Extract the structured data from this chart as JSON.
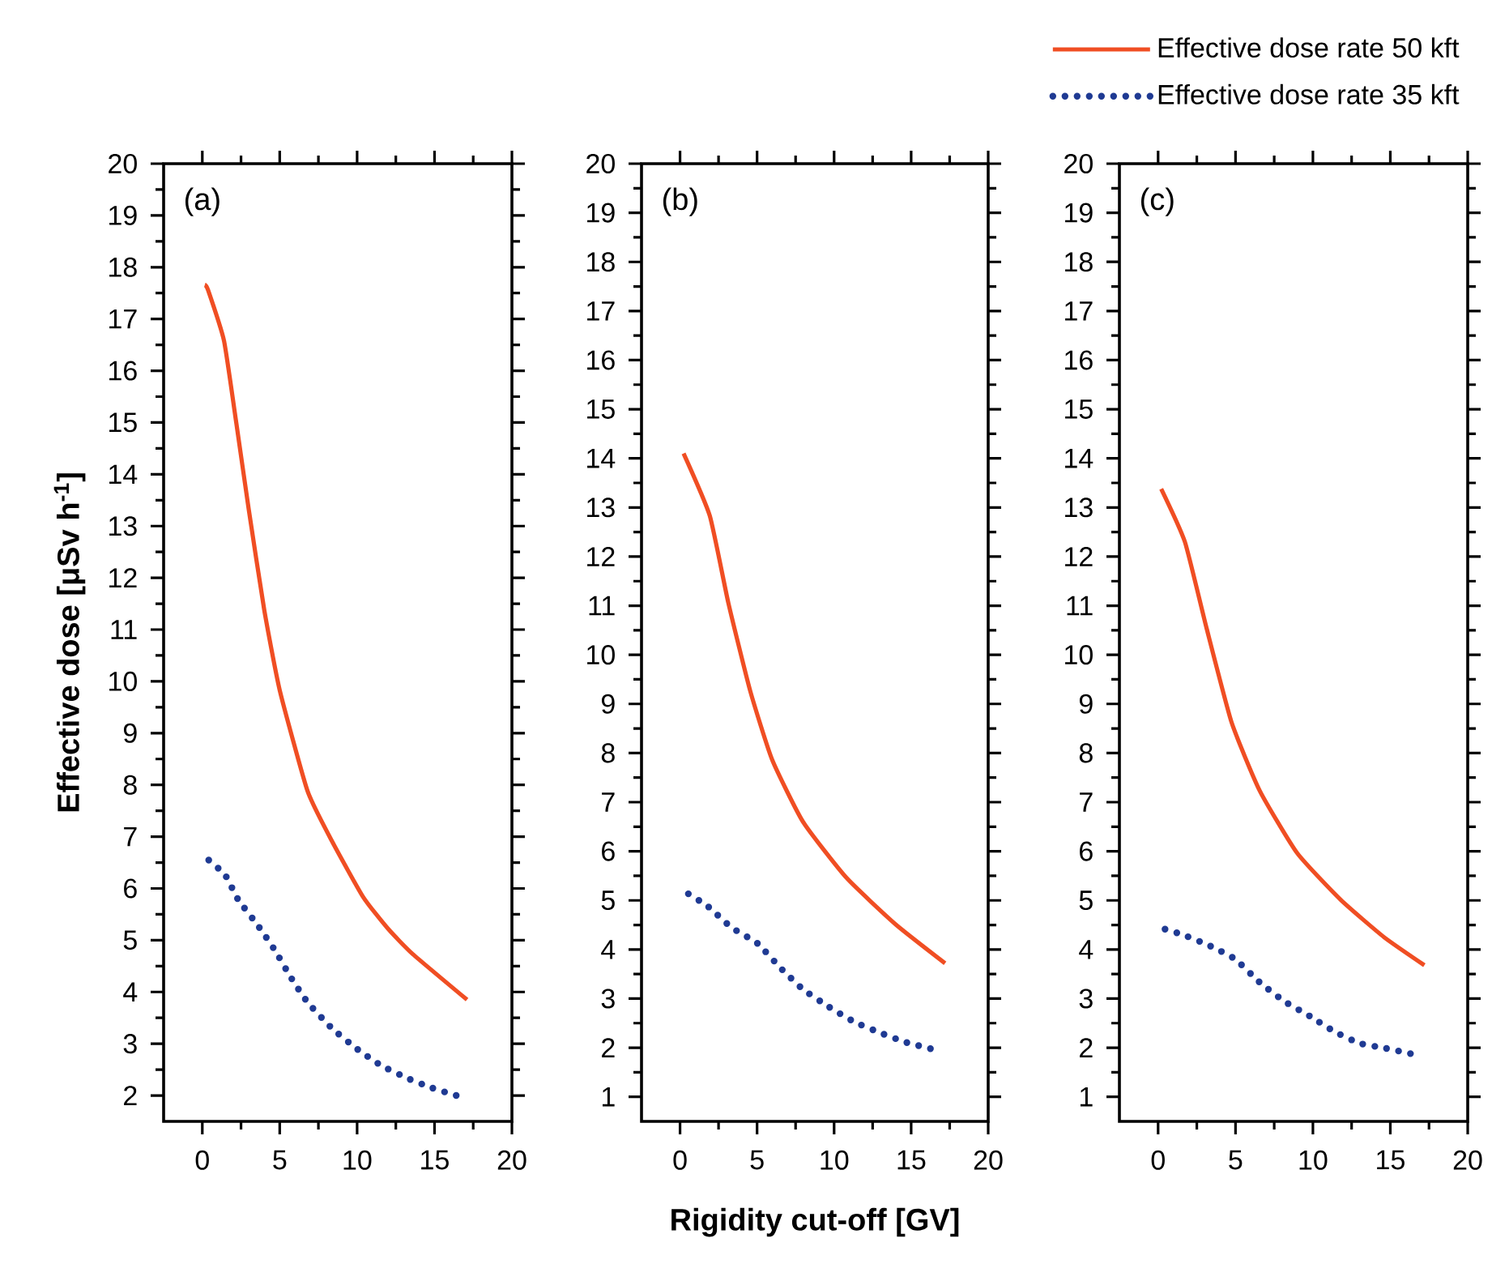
{
  "chart_data": [
    {
      "type": "line",
      "ylabel": "Effective dose  [μSv h$^{-1}$]",
      "annotations": [
        "(a)"
      ],
      "xlim": [
        -2.5,
        20
      ],
      "xticks": [
        0,
        5,
        10,
        15,
        20
      ],
      "ylim": [
        1.5,
        20
      ],
      "yticks": [
        2,
        3,
        4,
        5,
        6,
        7,
        8,
        9,
        10,
        11,
        12,
        13,
        14,
        15,
        16,
        17,
        18,
        19,
        20
      ],
      "marker": "none",
      "series": [
        {
          "color": "#f04e23",
          "line_style": "solid",
          "x": [
            0.16,
            0.37,
            1.4,
            2.2,
            3.0,
            4.0,
            5.0,
            6.8,
            8.4,
            10.4,
            12.0,
            13.6,
            17.1
          ],
          "values": [
            17.66,
            17.56,
            16.58,
            14.98,
            13.32,
            11.38,
            9.83,
            7.88,
            6.9,
            5.83,
            5.22,
            4.73,
            3.85
          ]
        },
        {
          "color": "#1f3a93",
          "line_style": "dotted",
          "x": [
            0.08,
            1.45,
            2.3,
            3.6,
            4.7,
            5.7,
            6.8,
            8.3,
            9.9,
            11.5,
            13.2,
            14.8,
            16.4
          ],
          "values": [
            6.63,
            6.27,
            5.79,
            5.28,
            4.8,
            4.29,
            3.8,
            3.32,
            2.92,
            2.59,
            2.34,
            2.15,
            2.0
          ]
        }
      ]
    },
    {
      "type": "line",
      "xlabel": "Rigidity cut-off  [GV]",
      "annotations": [
        "(b)"
      ],
      "xlim": [
        -2.5,
        20
      ],
      "xticks": [
        0,
        5,
        10,
        15,
        20
      ],
      "ylim": [
        0.5,
        20
      ],
      "yticks": [
        1,
        2,
        3,
        4,
        5,
        6,
        7,
        8,
        9,
        10,
        11,
        12,
        13,
        14,
        15,
        16,
        17,
        18,
        19,
        20
      ],
      "marker": "none",
      "series": [
        {
          "color": "#f04e23",
          "line_style": "solid",
          "x": [
            0.23,
            1.93,
            3.14,
            4.55,
            5.97,
            7.98,
            10.8,
            14.0,
            17.2
          ],
          "values": [
            14.1,
            12.83,
            11.05,
            9.27,
            7.87,
            6.6,
            5.46,
            4.51,
            3.72
          ]
        },
        {
          "color": "#1f3a93",
          "line_style": "dotted",
          "x": [
            0.2,
            1.8,
            3.33,
            5.04,
            6.5,
            7.98,
            9.67,
            11.28,
            12.94,
            14.56,
            16.25
          ],
          "values": [
            5.2,
            4.88,
            4.45,
            4.12,
            3.63,
            3.19,
            2.83,
            2.53,
            2.31,
            2.12,
            1.98
          ]
        }
      ]
    },
    {
      "type": "line",
      "annotations": [
        "(c)"
      ],
      "xlim": [
        -2.5,
        20
      ],
      "xticks": [
        0,
        5,
        10,
        15,
        20
      ],
      "ylim": [
        0.5,
        20
      ],
      "yticks": [
        1,
        2,
        3,
        4,
        5,
        6,
        7,
        8,
        9,
        10,
        11,
        12,
        13,
        14,
        15,
        16,
        17,
        18,
        19,
        20
      ],
      "marker": "none",
      "legend": "top",
      "series": [
        {
          "name": "Effective dose rate 50 kft",
          "color": "#f04e23",
          "line_style": "solid",
          "x": [
            0.2,
            1.73,
            3.14,
            4.75,
            6.57,
            8.99,
            11.8,
            14.6,
            17.2
          ],
          "values": [
            13.38,
            12.3,
            10.53,
            8.62,
            7.23,
            5.96,
            5.01,
            4.25,
            3.68
          ]
        },
        {
          "name": "Effective dose rate 35 kft",
          "color": "#1f3a93",
          "line_style": "dotted",
          "x": [
            0.07,
            1.68,
            3.38,
            4.99,
            6.53,
            8.13,
            9.81,
            11.38,
            13.02,
            14.69,
            16.3
          ],
          "values": [
            4.45,
            4.29,
            4.07,
            3.8,
            3.34,
            2.95,
            2.64,
            2.33,
            2.09,
            1.99,
            1.88
          ]
        }
      ]
    }
  ]
}
